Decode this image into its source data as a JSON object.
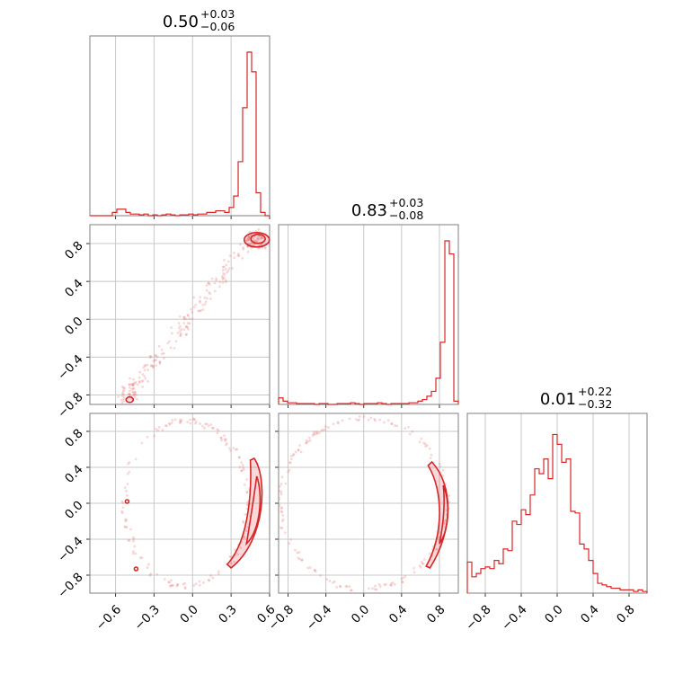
{
  "colors": {
    "series": "#d62728",
    "frame": "#7f7f7f",
    "grid": "#c8c8c8"
  },
  "chart_data": {
    "type": "corner",
    "params": [
      {
        "range": [
          -0.8,
          0.6
        ],
        "ticks": [
          "−0.6",
          "−0.3",
          "0.0",
          "0.3",
          "0.6"
        ],
        "tick_values": [
          -0.6,
          -0.3,
          0.0,
          0.3,
          0.6
        ]
      },
      {
        "range": [
          -0.9,
          1.0
        ],
        "ticks": [
          "−0.8",
          "−0.4",
          "0.0",
          "0.4",
          "0.8"
        ],
        "tick_values": [
          -0.8,
          -0.4,
          0.0,
          0.4,
          0.8
        ]
      },
      {
        "range": [
          -1.0,
          1.0
        ],
        "ticks": [
          "−0.8",
          "−0.4",
          "0.0",
          "0.4",
          "0.8"
        ],
        "tick_values": [
          -0.8,
          -0.4,
          0.0,
          0.4,
          0.8
        ]
      }
    ],
    "titles": [
      {
        "value": "0.50",
        "plus": "+0.03",
        "minus": "−0.06"
      },
      {
        "value": "0.83",
        "plus": "+0.03",
        "minus": "−0.08"
      },
      {
        "value": "0.01",
        "plus": "+0.22",
        "minus": "−0.32"
      }
    ],
    "histograms": [
      {
        "param": 0,
        "heights": [
          0,
          0,
          0,
          0,
          0,
          0.02,
          0.04,
          0.04,
          0.02,
          0.01,
          0.01,
          0.005,
          0.01,
          0,
          0.005,
          0,
          0.005,
          0.01,
          0.005,
          0,
          0.005,
          0.005,
          0.01,
          0.005,
          0.01,
          0.01,
          0.02,
          0.02,
          0.03,
          0.03,
          0.02,
          0.05,
          0.12,
          0.33,
          0.66,
          1.0,
          0.88,
          0.14,
          0.02,
          0
        ]
      },
      {
        "param": 1,
        "heights": [
          0.04,
          0.02,
          0.01,
          0.01,
          0.005,
          0.005,
          0.005,
          0.005,
          0,
          0.005,
          0.005,
          0,
          0,
          0.005,
          0.005,
          0.005,
          0.01,
          0.005,
          0,
          0.005,
          0.005,
          0.005,
          0.01,
          0.005,
          0,
          0.005,
          0.005,
          0.005,
          0.005,
          0.01,
          0.01,
          0.02,
          0.03,
          0.05,
          0.08,
          0.16,
          0.38,
          1.0,
          0.92,
          0.02
        ]
      },
      {
        "param": 2,
        "heights": [
          0.19,
          0.1,
          0.12,
          0.15,
          0.16,
          0.15,
          0.2,
          0.18,
          0.27,
          0.26,
          0.44,
          0.42,
          0.51,
          0.48,
          0.6,
          0.76,
          0.73,
          0.82,
          0.7,
          0.97,
          0.91,
          0.8,
          0.82,
          0.5,
          0.49,
          0.3,
          0.27,
          0.2,
          0.12,
          0.06,
          0.05,
          0.04,
          0.03,
          0.03,
          0.02,
          0.02,
          0.02,
          0.01,
          0.02,
          0.01
        ]
      }
    ]
  }
}
